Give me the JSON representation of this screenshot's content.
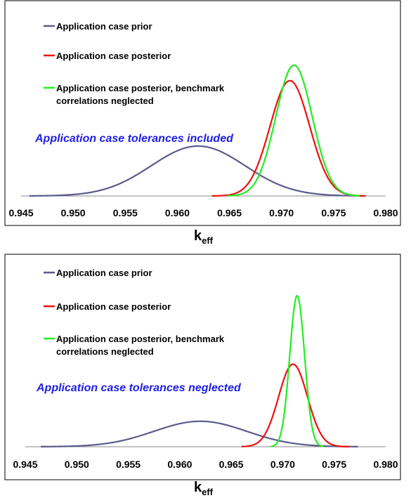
{
  "chart_data": [
    {
      "type": "line",
      "title": "",
      "xlabel": "k",
      "xlabel_subscript": "eff",
      "ylabel": "",
      "xlim": [
        0.945,
        0.98
      ],
      "x_ticks": [
        "0.945",
        "0.950",
        "0.955",
        "0.960",
        "0.965",
        "0.970",
        "0.975",
        "0.980"
      ],
      "y_ticks": [],
      "grid": false,
      "legend_position": "top-left",
      "annotation": "Application case tolerances included",
      "series": [
        {
          "name": "Application case prior",
          "distribution": "normal",
          "mean": 0.962,
          "sd": 0.0045,
          "peak": 0.29,
          "xrange": [
            0.9458,
            0.9781
          ],
          "color": "#5b5b8c"
        },
        {
          "name": "Application case posterior",
          "distribution": "normal",
          "mean": 0.9708,
          "sd": 0.0019,
          "peak": 0.67,
          "xrange": [
            0.9633,
            0.978
          ],
          "color": "#ee1010"
        },
        {
          "name": "Application case posterior, benchmark correlations neglected",
          "distribution": "normal",
          "mean": 0.9712,
          "sd": 0.00175,
          "peak": 0.76,
          "xrange": [
            0.9648,
            0.9775
          ],
          "color": "#22ee22"
        }
      ]
    },
    {
      "type": "line",
      "title": "",
      "xlabel": "k",
      "xlabel_subscript": "eff",
      "ylabel": "",
      "xlim": [
        0.945,
        0.98
      ],
      "x_ticks": [
        "0.945",
        "0.950",
        "0.955",
        "0.960",
        "0.965",
        "0.970",
        "0.975",
        "0.980"
      ],
      "y_ticks": [],
      "grid": false,
      "legend_position": "top-left",
      "annotation": "Application case tolerances neglected",
      "series": [
        {
          "name": "Application case prior",
          "distribution": "normal",
          "mean": 0.962,
          "sd": 0.0045,
          "peak": 0.145,
          "xrange": [
            0.9465,
            0.9773
          ],
          "color": "#5b5b8c"
        },
        {
          "name": "Application case posterior",
          "distribution": "normal",
          "mean": 0.971,
          "sd": 0.0014,
          "peak": 0.47,
          "xrange": [
            0.966,
            0.9765
          ],
          "color": "#ee1010"
        },
        {
          "name": "Application case posterior, benchmark correlations neglected",
          "distribution": "normal",
          "mean": 0.9714,
          "sd": 0.00072,
          "peak": 0.86,
          "xrange": [
            0.9688,
            0.974
          ],
          "color": "#22ee22"
        }
      ]
    }
  ]
}
